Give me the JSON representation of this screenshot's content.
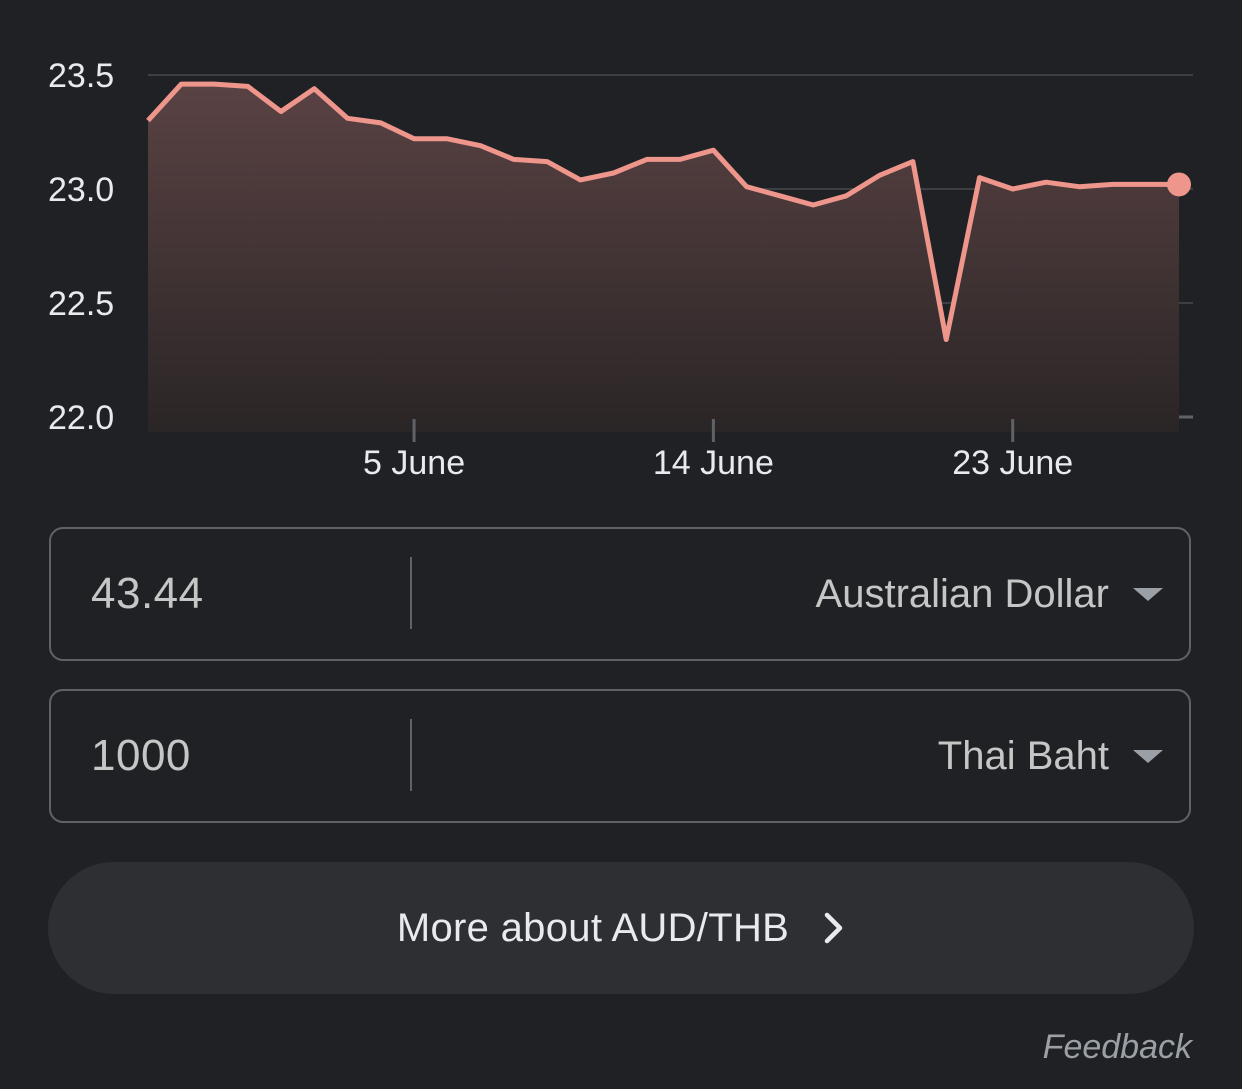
{
  "chart_data": {
    "type": "area",
    "x_ticks": [
      "5 June",
      "14 June",
      "23 June"
    ],
    "y_ticks": [
      "23.5",
      "23.0",
      "22.5",
      "22.0"
    ],
    "ylim": [
      22.0,
      23.5
    ],
    "grid": true,
    "colors": {
      "line": "#ee968b",
      "fill_top": "#5a4243",
      "grid": "#3c4043",
      "axis": "#5f6368"
    },
    "series": [
      {
        "x": [
          "28 May",
          "29 May",
          "30 May",
          "31 May",
          "1 June",
          "2 June",
          "3 June",
          "4 June",
          "5 June",
          "6 June",
          "7 June",
          "8 June",
          "9 June",
          "10 June",
          "11 June",
          "12 June",
          "13 June",
          "14 June",
          "15 June",
          "16 June",
          "17 June",
          "18 June",
          "19 June",
          "20 June",
          "21 June",
          "22 June",
          "23 June",
          "24 June",
          "25 June",
          "26 June",
          "27 June",
          "28 June"
        ],
        "values": [
          23.3,
          23.46,
          23.46,
          23.45,
          23.34,
          23.44,
          23.31,
          23.29,
          23.22,
          23.22,
          23.19,
          23.13,
          23.12,
          23.04,
          23.07,
          23.13,
          23.13,
          23.17,
          23.01,
          22.97,
          22.93,
          22.97,
          23.06,
          23.12,
          22.34,
          23.05,
          23.0,
          23.03,
          23.01,
          23.02,
          23.02,
          23.02
        ]
      }
    ]
  },
  "converter": {
    "from": {
      "value": "43.44",
      "currency": "Australian Dollar"
    },
    "to": {
      "value": "1000",
      "currency": "Thai Baht"
    }
  },
  "more_button": {
    "label": "More about AUD/THB",
    "icon": "chevron-right-icon"
  },
  "feedback": {
    "label": "Feedback"
  }
}
